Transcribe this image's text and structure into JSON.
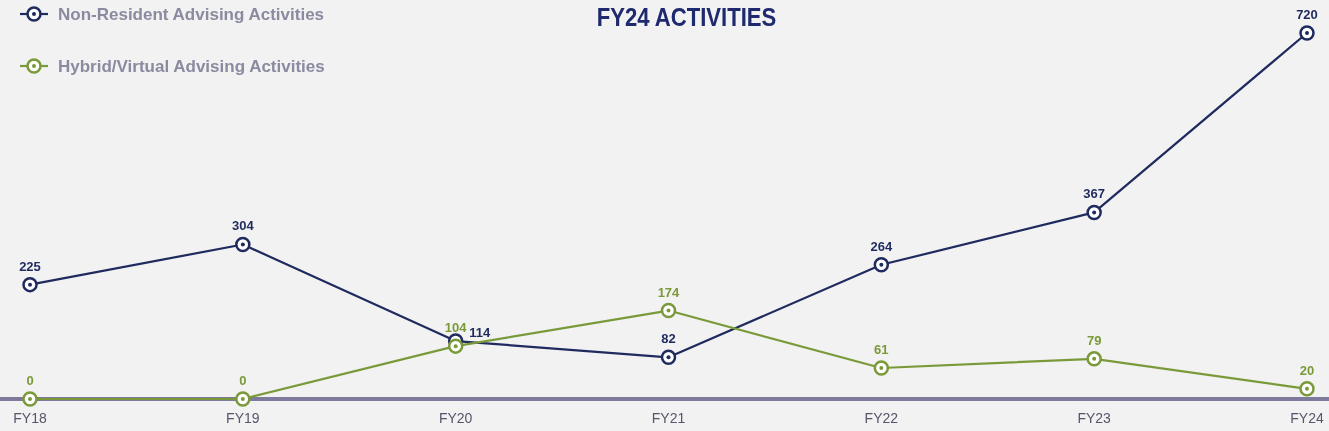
{
  "chart_data": {
    "type": "line",
    "title": "FY24 ACTIVITIES",
    "categories": [
      "FY18",
      "FY19",
      "FY20",
      "FY21",
      "FY22",
      "FY23",
      "FY24"
    ],
    "series": [
      {
        "name": "Non-Resident Advising Activities",
        "color": "#1f2a5e",
        "values": [
          225,
          304,
          114,
          82,
          264,
          367,
          720
        ]
      },
      {
        "name": "Hybrid/Virtual Advising Activities",
        "color": "#7a9a3a",
        "values": [
          0,
          0,
          104,
          174,
          61,
          79,
          20
        ]
      }
    ],
    "data_labels": true,
    "legend": "top left",
    "marker": "circle",
    "line_style": "solid",
    "grid": false
  }
}
